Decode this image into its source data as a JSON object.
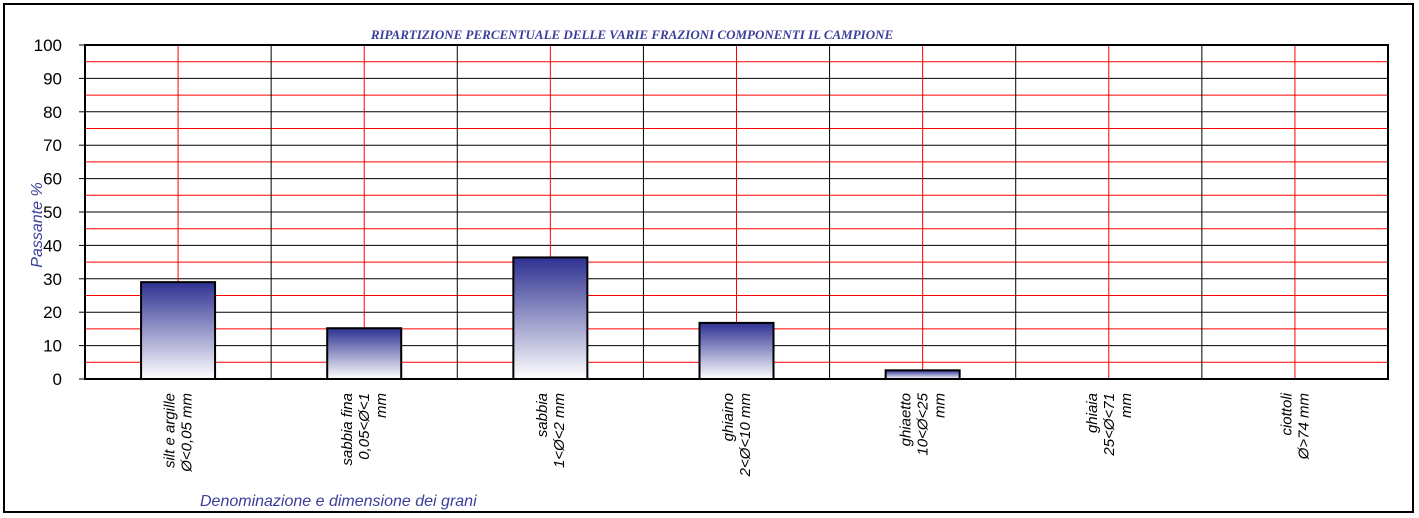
{
  "chart_data": {
    "type": "bar",
    "title": "RIPARTIZIONE PERCENTUALE DELLE VARIE FRAZIONI COMPONENTI IL CAMPIONE",
    "xlabel": "Denominazione e dimensione dei grani",
    "ylabel": "Passante %",
    "ylim": [
      0,
      100
    ],
    "yticks": [
      "0",
      "10",
      "20",
      "30",
      "40",
      "50",
      "60",
      "70",
      "80",
      "90",
      "100"
    ],
    "categories": [
      [
        "silt e argille",
        "Ø<0,05 mm"
      ],
      [
        "sabbia fina",
        "0,05<Ø<1",
        "mm"
      ],
      [
        "sabbia",
        "1<Ø<2 mm"
      ],
      [
        "ghiaino",
        "2<Ø<10 mm"
      ],
      [
        "ghiaetto",
        "10<Ø<25",
        "mm"
      ],
      [
        "ghiaia",
        "25<Ø<71",
        "mm"
      ],
      [
        "ciottoli",
        "Ø>74 mm"
      ]
    ],
    "values": [
      29,
      15.2,
      36.4,
      16.8,
      2.6,
      0,
      0
    ],
    "grid": true,
    "colors": {
      "bar_top": "#2e3192",
      "bar_bottom": "#ffffff",
      "grid_major": "#000000",
      "grid_minor": "#ff0000",
      "title": "#3b3f9b",
      "axis_label": "#3b3f9b"
    }
  }
}
